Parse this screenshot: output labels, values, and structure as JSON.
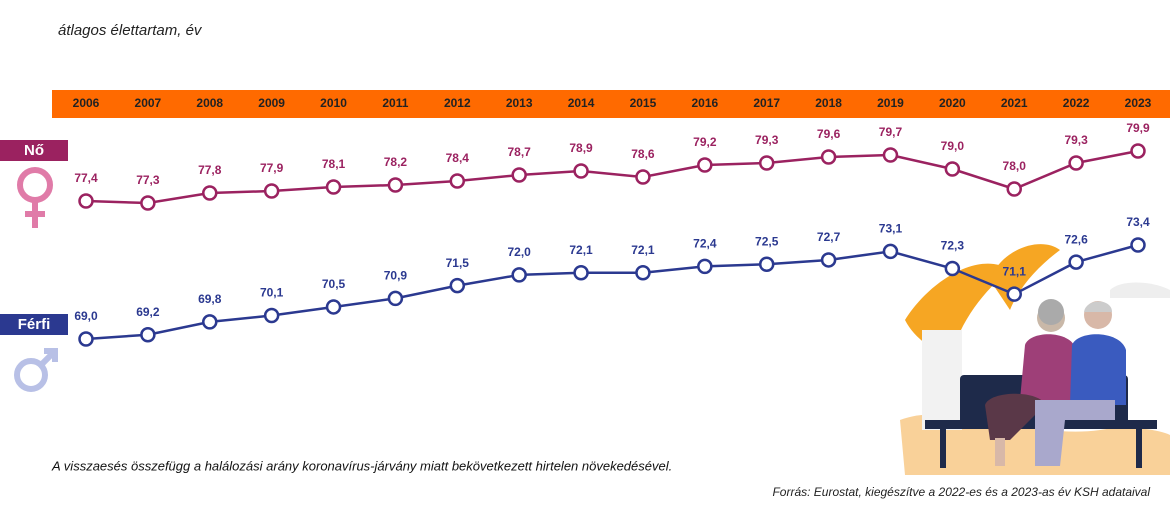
{
  "chart_data": {
    "type": "line",
    "title": "átlagos élettartam, év",
    "categories": [
      "2006",
      "2007",
      "2008",
      "2009",
      "2010",
      "2011",
      "2012",
      "2013",
      "2014",
      "2015",
      "2016",
      "2017",
      "2018",
      "2019",
      "2020",
      "2021",
      "2022",
      "2023"
    ],
    "series": [
      {
        "name": "Nő",
        "color": "#9b2260",
        "values": [
          77.4,
          77.3,
          77.8,
          77.9,
          78.1,
          78.2,
          78.4,
          78.7,
          78.9,
          78.6,
          79.2,
          79.3,
          79.6,
          79.7,
          79.0,
          78.0,
          79.3,
          79.9
        ],
        "value_labels": [
          "77,4",
          "77,3",
          "77,8",
          "77,9",
          "78,1",
          "78,2",
          "78,4",
          "78,7",
          "78,9",
          "78,6",
          "79,2",
          "79,3",
          "79,6",
          "79,7",
          "79,0",
          "78,0",
          "79,3",
          "79,9"
        ]
      },
      {
        "name": "Férfi",
        "color": "#2b3990",
        "values": [
          69.0,
          69.2,
          69.8,
          70.1,
          70.5,
          70.9,
          71.5,
          72.0,
          72.1,
          72.1,
          72.4,
          72.5,
          72.7,
          73.1,
          72.3,
          71.1,
          72.6,
          73.4
        ],
        "value_labels": [
          "69,0",
          "69,2",
          "69,8",
          "70,1",
          "70,5",
          "70,9",
          "71,5",
          "72,0",
          "72,1",
          "72,1",
          "72,4",
          "72,5",
          "72,7",
          "73,1",
          "72,3",
          "71,1",
          "72,6",
          "73,4"
        ]
      }
    ],
    "note": "A visszaesés összefügg a halálozási arány koronavírus-járvány miatt bekövetkezett hirtelen növekedésével.",
    "source": "Forrás: Eurostat, kiegészítve a 2022-es és a 2023-as év KSH adataival"
  }
}
